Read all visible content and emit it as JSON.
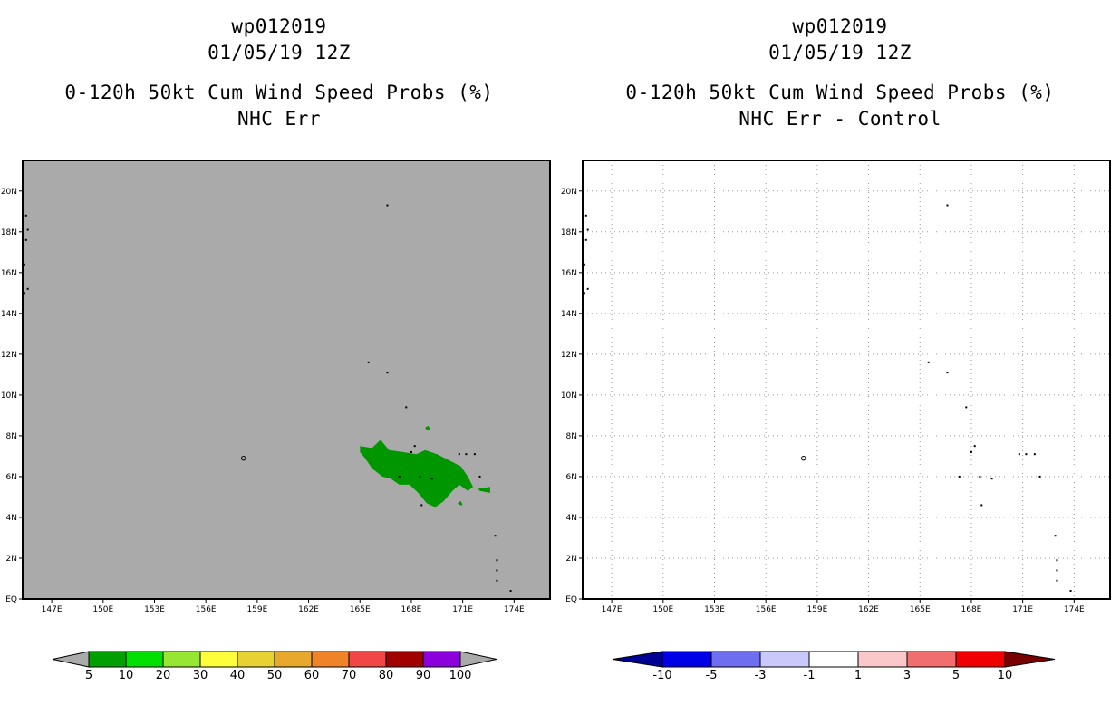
{
  "panels": [
    {
      "title_lines": [
        "wp012019",
        "01/05/19 12Z",
        "0-120h 50kt Cum Wind Speed Probs (%)",
        "NHC Err"
      ],
      "background": "#aaaaaa",
      "grid": false
    },
    {
      "title_lines": [
        "wp012019",
        "01/05/19 12Z",
        "0-120h 50kt Cum Wind Speed Probs (%)",
        "NHC Err - Control"
      ],
      "background": "#ffffff",
      "grid": true
    }
  ],
  "chart_data": {
    "type": "heatmap",
    "x_axis": {
      "range": [
        145.3,
        176.1
      ],
      "tick_values": [
        147,
        150,
        153,
        156,
        159,
        162,
        165,
        168,
        171,
        174
      ],
      "tick_labels": [
        "147E",
        "150E",
        "153E",
        "156E",
        "159E",
        "162E",
        "165E",
        "168E",
        "171E",
        "174E"
      ]
    },
    "y_axis": {
      "range": [
        0,
        21.5
      ],
      "tick_values": [
        0,
        2,
        4,
        6,
        8,
        10,
        12,
        14,
        16,
        18,
        20
      ],
      "tick_labels": [
        "EQ",
        "2N",
        "4N",
        "6N",
        "8N",
        "10N",
        "12N",
        "14N",
        "16N",
        "18N",
        "20N"
      ]
    },
    "probability_region": {
      "panel": 1,
      "bin": "5-10",
      "color": "#009600",
      "outline_lonlat": [
        [
          165.0,
          7.5
        ],
        [
          165.7,
          7.4
        ],
        [
          166.2,
          7.8
        ],
        [
          166.7,
          7.3
        ],
        [
          167.5,
          7.2
        ],
        [
          168.3,
          7.1
        ],
        [
          168.8,
          7.3
        ],
        [
          169.5,
          7.1
        ],
        [
          170.2,
          6.8
        ],
        [
          170.9,
          6.5
        ],
        [
          171.3,
          6.0
        ],
        [
          171.6,
          5.5
        ],
        [
          171.3,
          5.3
        ],
        [
          170.8,
          5.6
        ],
        [
          170.4,
          5.3
        ],
        [
          169.9,
          4.8
        ],
        [
          169.4,
          4.5
        ],
        [
          168.9,
          4.7
        ],
        [
          168.4,
          5.2
        ],
        [
          167.9,
          5.6
        ],
        [
          167.3,
          5.6
        ],
        [
          166.8,
          5.9
        ],
        [
          166.3,
          6.0
        ],
        [
          165.7,
          6.4
        ],
        [
          165.3,
          6.9
        ],
        [
          165.0,
          7.2
        ]
      ],
      "extra_blobs_lonlat": [
        [
          [
            171.9,
            5.4
          ],
          [
            172.6,
            5.5
          ],
          [
            172.6,
            5.2
          ],
          [
            172.0,
            5.3
          ]
        ],
        [
          [
            168.8,
            8.4
          ],
          [
            169.0,
            8.5
          ],
          [
            169.1,
            8.3
          ],
          [
            168.9,
            8.3
          ]
        ],
        [
          [
            170.7,
            4.7
          ],
          [
            170.9,
            4.8
          ],
          [
            171.0,
            4.6
          ],
          [
            170.8,
            4.6
          ]
        ]
      ]
    },
    "coast_points_lonlat": [
      [
        145.5,
        18.8
      ],
      [
        145.6,
        18.1
      ],
      [
        145.5,
        17.6
      ],
      [
        145.4,
        16.4
      ],
      [
        145.6,
        15.2
      ],
      [
        145.4,
        15.0
      ],
      [
        166.6,
        19.3
      ],
      [
        165.5,
        11.6
      ],
      [
        166.6,
        11.1
      ],
      [
        167.7,
        9.4
      ],
      [
        168.2,
        7.5
      ],
      [
        168.0,
        7.2
      ],
      [
        167.3,
        6.0
      ],
      [
        168.5,
        6.0
      ],
      [
        169.2,
        5.9
      ],
      [
        168.6,
        4.6
      ],
      [
        170.8,
        7.1
      ],
      [
        171.2,
        7.1
      ],
      [
        171.7,
        7.1
      ],
      [
        172.0,
        6.0
      ],
      [
        172.9,
        3.1
      ],
      [
        173.0,
        1.9
      ],
      [
        173.0,
        1.4
      ],
      [
        173.0,
        0.9
      ],
      [
        173.8,
        0.4
      ],
      [
        158.2,
        6.9
      ]
    ],
    "legends": [
      {
        "panel": 1,
        "type": "colorbar",
        "labels": [
          "5",
          "10",
          "20",
          "30",
          "40",
          "50",
          "60",
          "70",
          "80",
          "90",
          "100"
        ],
        "colors": [
          "#00a000",
          "#00e000",
          "#96e632",
          "#ffff3c",
          "#e6d232",
          "#e6a82d",
          "#f08228",
          "#f04646",
          "#a00000",
          "#8c00dc"
        ],
        "end_arrow_colors": [
          "#aaaaaa",
          "#aaaaaa"
        ]
      },
      {
        "panel": 2,
        "type": "colorbar",
        "labels": [
          "-10",
          "-5",
          "-3",
          "-1",
          "1",
          "3",
          "5",
          "10"
        ],
        "colors": [
          "#0000e6",
          "#6e6ef0",
          "#c8c8fa",
          "#ffffff",
          "#fac8c8",
          "#f06e6e",
          "#f00000"
        ],
        "end_arrow_colors": [
          "#000096",
          "#780000"
        ]
      }
    ]
  }
}
